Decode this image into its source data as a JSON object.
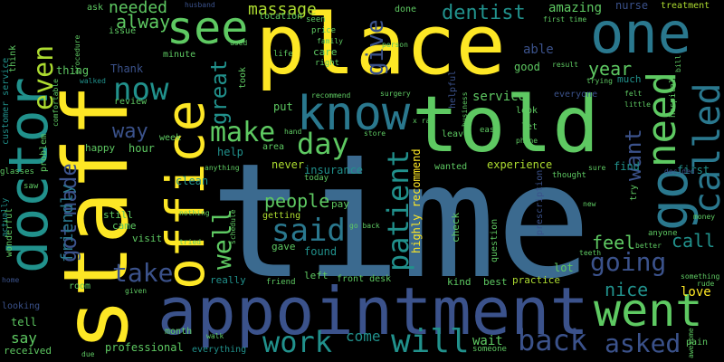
{
  "colors": {
    "background": "#000000",
    "yellow": "#fde725",
    "green": "#5ec962",
    "teal": "#21918c",
    "blue": "#3b528b",
    "purple": "#440154",
    "lightgreen": "#addc30"
  },
  "words": {
    "time": "time",
    "staff": "staff",
    "place": "place",
    "told": "told",
    "one": "one",
    "doctor": "doctor",
    "office": "office",
    "appointment": "appointment",
    "know": "know",
    "see": "see",
    "go": "go",
    "need": "need",
    "went": "went",
    "called": "called",
    "now": "now",
    "even": "even",
    "make": "make",
    "day": "day",
    "said": "said",
    "patient": "patient",
    "work": "work",
    "will": "will",
    "back": "back",
    "asked": "asked",
    "going": "going",
    "take": "take",
    "well": "well",
    "great": "great",
    "give": "give",
    "dentist": "dentist",
    "massage": "massage",
    "made": "made",
    "got": "got",
    "friendly": "friendly",
    "people": "people",
    "want": "want",
    "feel": "feel",
    "call": "call",
    "nice": "nice",
    "year": "year",
    "way": "way",
    "alway": "alway",
    "needed": "needed",
    "service": "service",
    "experience": "experience",
    "highly_recommend": "highly recommend",
    "amazing": "amazing",
    "thing": "thing",
    "come": "come",
    "love": "love",
    "lot": "lot",
    "say": "say",
    "wait": "wait",
    "able": "able",
    "good": "good",
    "much": "much",
    "find": "find",
    "first": "first",
    "thank": "Thank",
    "hour": "hour",
    "happy": "happy",
    "help": "help",
    "clean": "clean",
    "never": "never",
    "insurance": "insurance",
    "today": "today",
    "pay": "pay",
    "getting": "getting",
    "still": "still",
    "came": "came",
    "visit": "visit",
    "gave": "gave",
    "found": "found",
    "left": "left",
    "really": "really",
    "put": "put",
    "care": "care",
    "price": "price",
    "right": "right",
    "life": "life",
    "seen": "seen",
    "location": "location",
    "done": "done",
    "issue": "issue",
    "ask": "ask",
    "think": "think",
    "customer_service": "customer service",
    "minute": "minute",
    "took": "took",
    "review": "review",
    "week": "week",
    "walked": "walked",
    "tell": "tell",
    "room": "room",
    "looking": "looking",
    "received": "received",
    "professional": "professional",
    "month": "month",
    "everything": "everything",
    "walk": "walk",
    "front_desk": "front desk",
    "kind": "kind",
    "best": "best",
    "practice": "practice",
    "someone": "someone",
    "question": "question",
    "check": "check",
    "wanted": "wanted",
    "anyone": "anyone",
    "try": "try",
    "decided": "decided",
    "thought": "thought",
    "business": "business",
    "helpful": "helpful",
    "look": "look",
    "let": "let",
    "leave": "leave",
    "phone": "phone",
    "easy": "easy",
    "x_ray": "x ray",
    "person": "person",
    "family": "family",
    "recommend": "recommend",
    "surgery": "surgery",
    "hand": "hand",
    "store": "store",
    "go_back": "go back",
    "schedule": "schedule",
    "nothing": "nothing",
    "tried": "tried",
    "anything": "anything",
    "used": "used",
    "husband": "husband",
    "problem": "problem",
    "glasses": "glasses",
    "saw": "saw",
    "actually": "actually",
    "wonderful": "wonderful",
    "comfortable": "comfortable",
    "procedure": "procedure",
    "home": "home",
    "due": "due",
    "given": "given",
    "friend": "friend",
    "area": "area",
    "nurse": "nurse",
    "treatment": "treatment",
    "first_time": "first time",
    "result": "result",
    "trying": "trying",
    "felt": "felt",
    "little": "little",
    "hospital": "hospital",
    "bill": "bill",
    "everyone": "everyone",
    "pain": "pain",
    "awesome": "awesome",
    "rude": "rude",
    "something": "something",
    "better": "better",
    "teeth": "teeth",
    "money": "money",
    "new": "new",
    "sure": "sure",
    "prescription": "prescription",
    "made_2": "made",
    "top_go": "go"
  }
}
